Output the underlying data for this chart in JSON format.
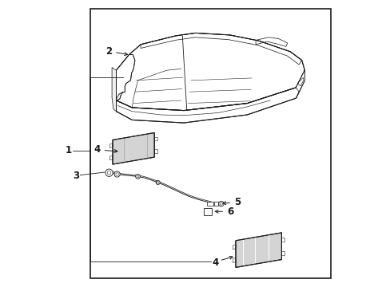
{
  "bg_color": "#ffffff",
  "line_color": "#1a1a1a",
  "border": [
    0.135,
    0.03,
    0.97,
    0.97
  ],
  "figsize": [
    4.89,
    3.6
  ],
  "dpi": 100,
  "label_fontsize": 8.5,
  "lw": 0.75
}
